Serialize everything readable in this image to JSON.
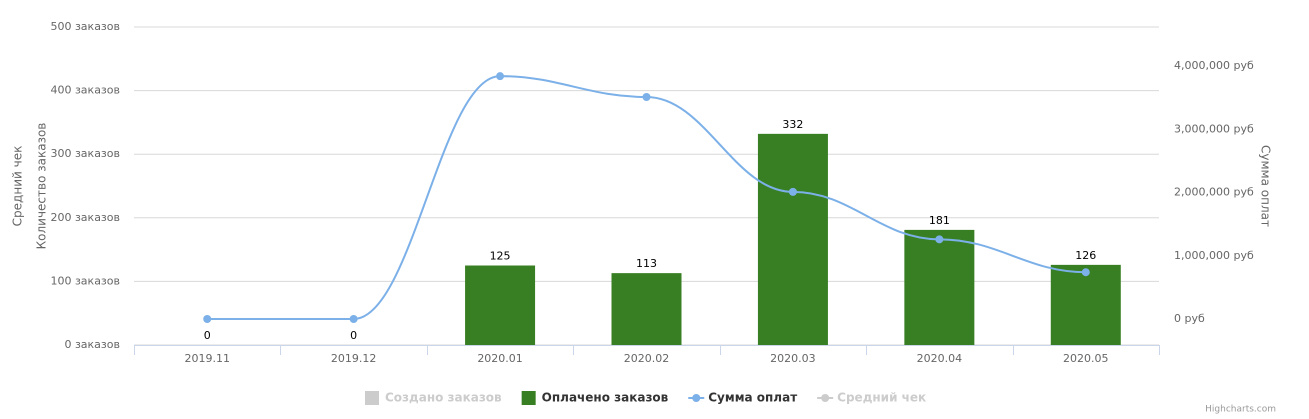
{
  "chart_data": {
    "type": "combo",
    "categories": [
      "2019.11",
      "2019.12",
      "2020.01",
      "2020.02",
      "2020.03",
      "2020.04",
      "2020.05"
    ],
    "y_titles": [
      "Средний чек",
      "Количество заказов"
    ],
    "y2_title": "Сумма оплат",
    "ylim": [
      0,
      500
    ],
    "yticks": [
      {
        "value": 0,
        "label": "0 заказов"
      },
      {
        "value": 100,
        "label": "100 заказов"
      },
      {
        "value": 200,
        "label": "200 заказов"
      },
      {
        "value": 300,
        "label": "300 заказов"
      },
      {
        "value": 400,
        "label": "400 заказов"
      },
      {
        "value": 500,
        "label": "500 заказов"
      }
    ],
    "y2lim": [
      -411000,
      4617000
    ],
    "y2ticks": [
      {
        "value": 0,
        "label": "0 руб"
      },
      {
        "value": 1000000,
        "label": "1,000,000 руб"
      },
      {
        "value": 2000000,
        "label": "2,000,000 руб"
      },
      {
        "value": 3000000,
        "label": "3,000,000 руб"
      },
      {
        "value": 4000000,
        "label": "4,000,000 руб"
      }
    ],
    "grid": true,
    "series": [
      {
        "name": "Создано заказов",
        "type": "column",
        "color": "#cccccc",
        "visible": false
      },
      {
        "name": "Оплачено заказов",
        "type": "column",
        "color": "#387f23",
        "visible": true,
        "values": [
          0,
          0,
          125,
          113,
          332,
          181,
          126
        ]
      },
      {
        "name": "Сумма оплат",
        "type": "line",
        "axis": "y2",
        "color": "#7cb0e8",
        "visible": true,
        "values": [
          0,
          0,
          3840000,
          3510000,
          2010000,
          1260000,
          740000
        ]
      },
      {
        "name": "Средний чек",
        "type": "line",
        "color": "#cccccc",
        "visible": false
      }
    ],
    "credits": "Highcharts.com"
  }
}
